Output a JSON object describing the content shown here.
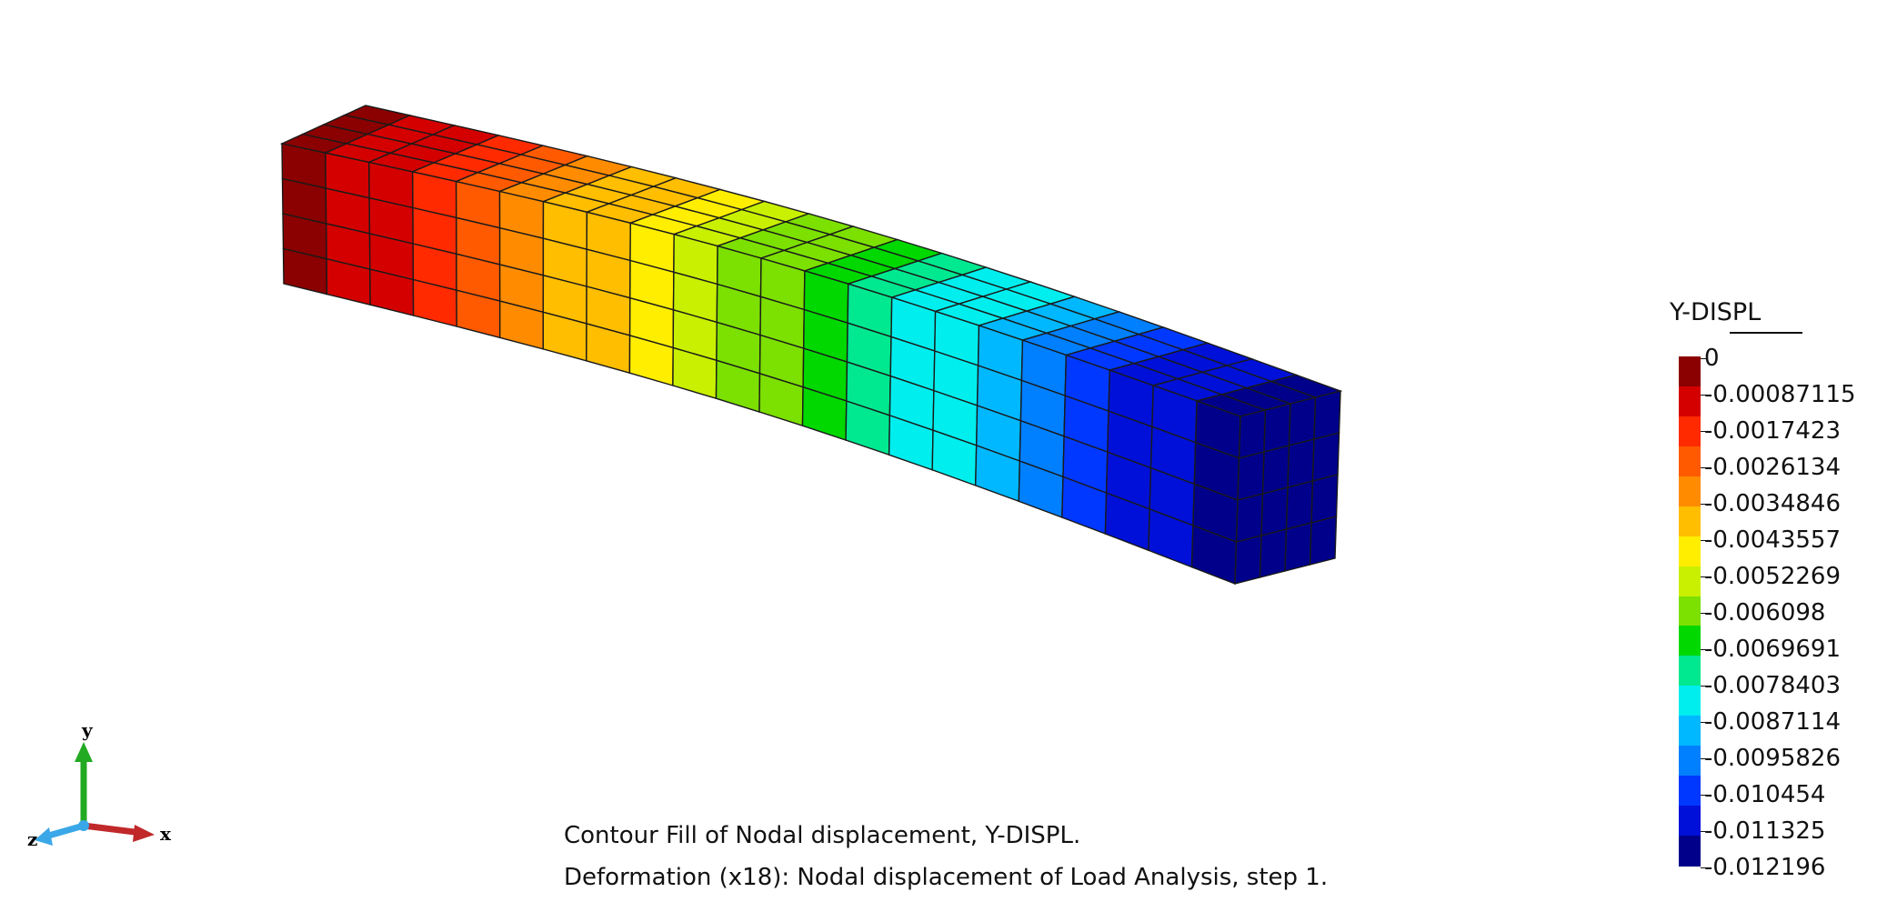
{
  "legend": {
    "title": "Y-DISPL",
    "labels": [
      "0",
      "-0.00087115",
      "-0.0017423",
      "-0.0026134",
      "-0.0034846",
      "-0.0043557",
      "-0.0052269",
      "-0.006098",
      "-0.0069691",
      "-0.0078403",
      "-0.0087114",
      "-0.0095826",
      "-0.010454",
      "-0.011325",
      "-0.012196"
    ],
    "colors": [
      "#8b0000",
      "#d40000",
      "#ff2a00",
      "#ff5a00",
      "#ff8c00",
      "#ffbe00",
      "#ffee00",
      "#c8f000",
      "#7ce000",
      "#00d800",
      "#00e890",
      "#00eeee",
      "#00b8ff",
      "#0080ff",
      "#0038ff",
      "#0010d8",
      "#00008b"
    ]
  },
  "caption": {
    "line1": "Contour Fill of Nodal displacement, Y-DISPL.",
    "line2": "Deformation (x18): Nodal displacement of Load Analysis, step 1."
  },
  "axes": {
    "x_label": "x",
    "y_label": "y",
    "z_label": "z",
    "x_color": "#c0282a",
    "y_color": "#22aa22",
    "z_color": "#3aa8e8"
  }
}
